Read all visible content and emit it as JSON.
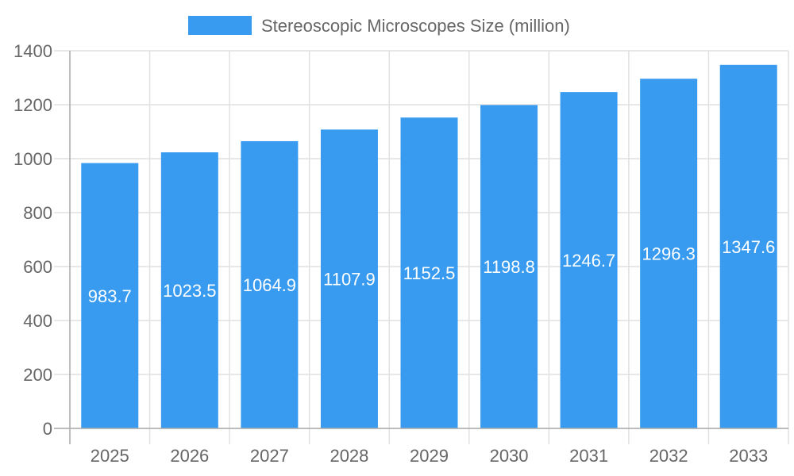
{
  "chart_data": {
    "type": "bar",
    "title": "",
    "xlabel": "",
    "ylabel": "",
    "categories": [
      "2025",
      "2026",
      "2027",
      "2028",
      "2029",
      "2030",
      "2031",
      "2032",
      "2033"
    ],
    "series": [
      {
        "name": "Stereoscopic Microscopes Size (million)",
        "values": [
          983.7,
          1023.5,
          1064.9,
          1107.9,
          1152.5,
          1198.8,
          1246.7,
          1296.3,
          1347.6
        ],
        "color": "#389bef"
      }
    ],
    "ylim": [
      0,
      1400
    ],
    "yticks": [
      0,
      200,
      400,
      600,
      800,
      1000,
      1200,
      1400
    ],
    "grid": true,
    "legend": "top",
    "data_labels": true
  }
}
